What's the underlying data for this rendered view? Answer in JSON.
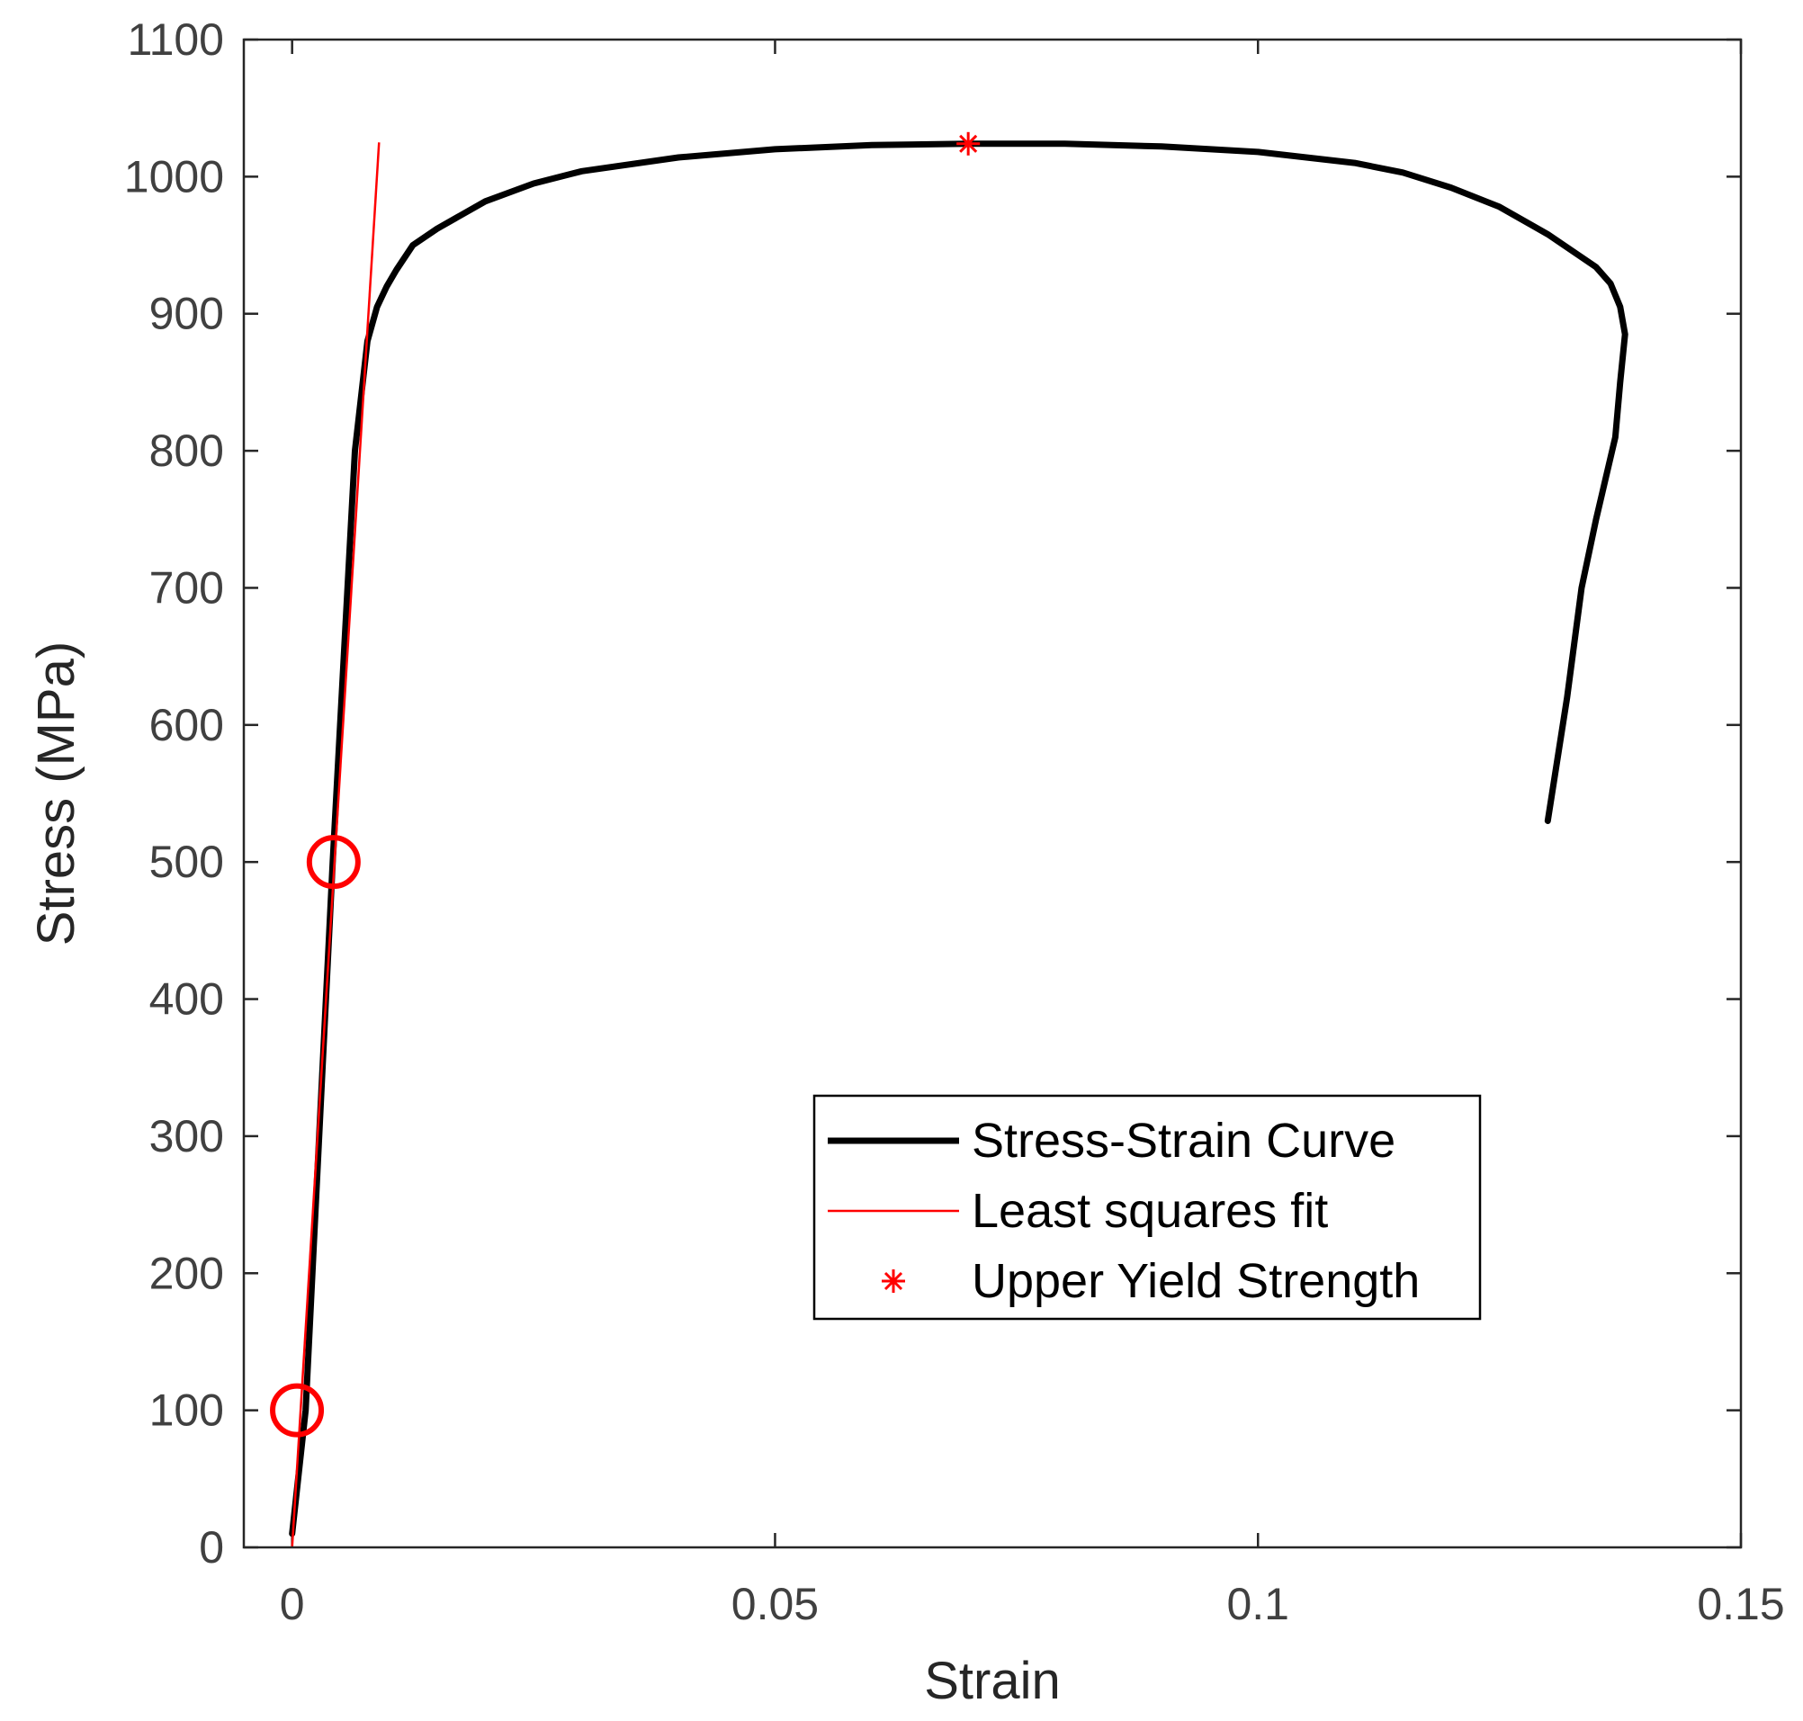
{
  "chart_data": {
    "type": "line",
    "xlabel": "Strain",
    "ylabel": "Stress (MPa)",
    "xlim": [
      -0.005,
      0.15
    ],
    "ylim": [
      0,
      1100
    ],
    "xticks": [
      0,
      0.05,
      0.1,
      0.15
    ],
    "xtick_labels": [
      "0",
      "0.05",
      "0.1",
      "0.15"
    ],
    "yticks": [
      0,
      100,
      200,
      300,
      400,
      500,
      600,
      700,
      800,
      900,
      1000,
      1100
    ],
    "ytick_labels": [
      "0",
      "100",
      "200",
      "300",
      "400",
      "500",
      "600",
      "700",
      "800",
      "900",
      "1000",
      "1100"
    ],
    "grid": false,
    "legend_position": "bottom-right",
    "series": [
      {
        "name": "Stress-Strain Curve",
        "color": "#000000",
        "style": "solid-thick",
        "x": [
          0.0,
          0.0014,
          0.0042,
          0.0065,
          0.0078,
          0.0088,
          0.0098,
          0.0108,
          0.0125,
          0.015,
          0.02,
          0.025,
          0.03,
          0.04,
          0.05,
          0.06,
          0.07,
          0.08,
          0.09,
          0.1,
          0.11,
          0.115,
          0.12,
          0.125,
          0.13,
          0.135,
          0.1365,
          0.1375,
          0.138,
          0.1375,
          0.137,
          0.136,
          0.135,
          0.1335,
          0.132,
          0.13
        ],
        "y": [
          10,
          100,
          500,
          800,
          880,
          905,
          920,
          932,
          950,
          962,
          982,
          995,
          1004,
          1014,
          1020,
          1023,
          1024,
          1024,
          1022,
          1018,
          1010,
          1003,
          992,
          978,
          958,
          934,
          922,
          905,
          885,
          850,
          810,
          780,
          750,
          700,
          620,
          530
        ]
      },
      {
        "name": "Least squares fit",
        "color": "#ff0000",
        "style": "solid-thin",
        "x": [
          0.0,
          0.009
        ],
        "y": [
          0,
          1025
        ]
      },
      {
        "name": "Upper Yield Strength",
        "color": "#ff0000",
        "style": "asterisk-marker",
        "x": [
          0.07
        ],
        "y": [
          1024
        ]
      },
      {
        "color": "#ff0000",
        "style": "circle-marker",
        "x": [
          0.0005,
          0.0043
        ],
        "y": [
          100,
          500
        ]
      }
    ]
  }
}
